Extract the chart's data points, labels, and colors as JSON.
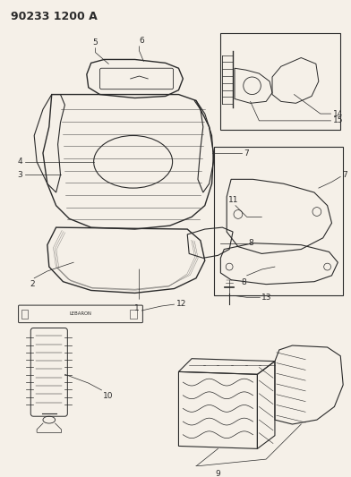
{
  "title": "90233 1200 A",
  "bg_color": "#f5f0e8",
  "line_color": "#2a2a2a",
  "title_fontsize": 9,
  "label_fontsize": 6.5
}
